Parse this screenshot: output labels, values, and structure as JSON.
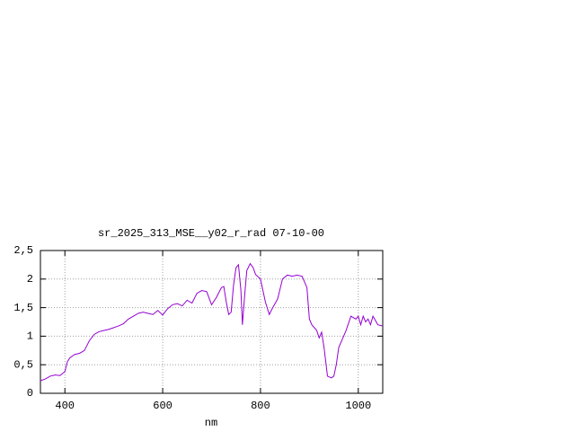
{
  "chart_data": {
    "type": "line",
    "title": "sr_2025_313_MSE__y02_r_rad 07-10-00",
    "xlabel": "nm",
    "x": [
      350,
      360,
      370,
      380,
      390,
      400,
      405,
      410,
      420,
      430,
      440,
      450,
      460,
      470,
      480,
      490,
      500,
      510,
      520,
      530,
      540,
      550,
      560,
      570,
      580,
      590,
      600,
      610,
      620,
      630,
      640,
      650,
      660,
      670,
      680,
      690,
      700,
      710,
      720,
      725,
      730,
      735,
      740,
      745,
      750,
      755,
      760,
      763,
      768,
      772,
      779,
      785,
      790,
      800,
      810,
      818,
      825,
      835,
      845,
      855,
      865,
      875,
      885,
      890,
      895,
      900,
      905,
      915,
      920,
      925,
      930,
      937,
      945,
      950,
      955,
      960,
      965,
      970,
      975,
      985,
      995,
      1000,
      1005,
      1010,
      1015,
      1020,
      1025,
      1030,
      1040,
      1050
    ],
    "series": [
      {
        "name": "r_rad",
        "color": "#9400d3",
        "values": [
          0.22,
          0.25,
          0.3,
          0.32,
          0.31,
          0.38,
          0.55,
          0.62,
          0.68,
          0.7,
          0.75,
          0.92,
          1.03,
          1.08,
          1.1,
          1.12,
          1.15,
          1.18,
          1.22,
          1.3,
          1.35,
          1.4,
          1.42,
          1.4,
          1.38,
          1.45,
          1.37,
          1.48,
          1.55,
          1.57,
          1.53,
          1.63,
          1.58,
          1.75,
          1.8,
          1.78,
          1.55,
          1.68,
          1.85,
          1.87,
          1.6,
          1.38,
          1.42,
          1.9,
          2.2,
          2.25,
          1.8,
          1.2,
          1.75,
          2.15,
          2.27,
          2.2,
          2.08,
          2.0,
          1.6,
          1.38,
          1.5,
          1.65,
          2.0,
          2.07,
          2.05,
          2.07,
          2.05,
          1.95,
          1.85,
          1.3,
          1.2,
          1.1,
          0.97,
          1.07,
          0.8,
          0.3,
          0.27,
          0.3,
          0.5,
          0.8,
          0.9,
          1.0,
          1.1,
          1.35,
          1.3,
          1.35,
          1.2,
          1.35,
          1.25,
          1.3,
          1.2,
          1.35,
          1.2,
          1.18
        ]
      }
    ],
    "xlim": [
      350,
      1050
    ],
    "xticks": [
      400,
      600,
      800,
      1000
    ],
    "ylim": [
      0,
      2.5
    ],
    "yticks": [
      0,
      {
        "value": 0.5,
        "label": "0,5"
      },
      1,
      {
        "value": 1.5,
        "label": "1,5"
      },
      2,
      {
        "value": 2.5,
        "label": "2,5"
      }
    ],
    "grid": true
  }
}
